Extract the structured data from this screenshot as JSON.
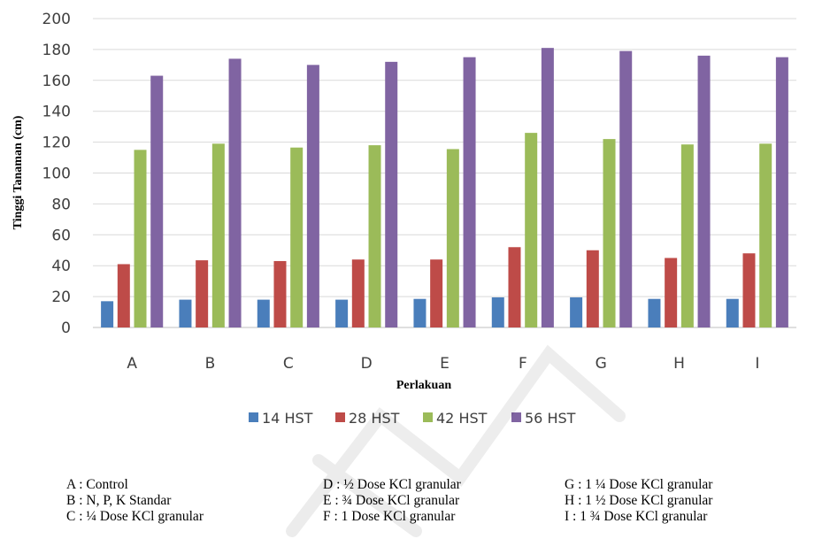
{
  "chart_data": {
    "type": "bar",
    "xlabel": "Perlakuan",
    "ylabel": "Tinggi Tanaman (cm)",
    "ylim": [
      0,
      200
    ],
    "yticks": [
      0,
      20,
      40,
      60,
      80,
      100,
      120,
      140,
      160,
      180,
      200
    ],
    "categories": [
      "A",
      "B",
      "C",
      "D",
      "E",
      "F",
      "G",
      "H",
      "I"
    ],
    "grid": true,
    "legend_position": "bottom",
    "series": [
      {
        "name": "14 HST",
        "color": "#4A7EBB",
        "values": [
          17,
          18,
          18,
          18,
          18.5,
          19.5,
          19.5,
          18.5,
          18.5
        ]
      },
      {
        "name": "28 HST",
        "color": "#BE4B48",
        "values": [
          41,
          43.5,
          43,
          44,
          44,
          52,
          50,
          45,
          48
        ]
      },
      {
        "name": "42 HST",
        "color": "#9BBB59",
        "values": [
          115,
          119,
          116.5,
          118,
          115.5,
          126,
          122,
          118.5,
          119
        ]
      },
      {
        "name": "56 HST",
        "color": "#8064A2",
        "values": [
          163,
          174,
          170,
          172,
          175,
          181,
          179,
          176,
          175
        ]
      }
    ]
  },
  "notes": [
    [
      "A : Control",
      "B : N, P, K Standar",
      "C : ¼ Dose KCl granular"
    ],
    [
      "D : ½ Dose KCl granular",
      "E : ¾  Dose KCl granular",
      "F : 1 Dose KCl granular"
    ],
    [
      "G : 1 ¼ Dose KCl granular",
      "H : 1 ½ Dose KCl granular",
      "I : 1 ¾  Dose KCl granular"
    ]
  ]
}
